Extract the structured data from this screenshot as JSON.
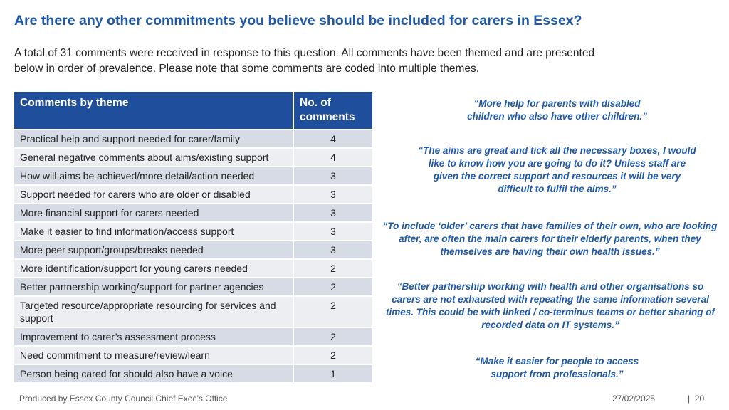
{
  "title": "Are there any other commitments you believe should be included for carers in Essex?",
  "intro": "A total of 31 comments were received in response to this question. All comments have been themed and are presented below in order of prevalence. Please note that some comments are coded into multiple themes.",
  "table": {
    "headers": {
      "theme": "Comments by theme",
      "count": "No. of comments"
    },
    "rows": [
      {
        "theme": "Practical help and support needed for carer/family",
        "count": "4"
      },
      {
        "theme": "General negative comments about aims/existing support",
        "count": "4"
      },
      {
        "theme": "How will aims be achieved/more detail/action needed",
        "count": "3"
      },
      {
        "theme": "Support needed for carers who are older or disabled",
        "count": "3"
      },
      {
        "theme": "More financial support for carers needed",
        "count": "3"
      },
      {
        "theme": "Make it easier to find information/access support",
        "count": "3"
      },
      {
        "theme": "More peer support/groups/breaks needed",
        "count": "3"
      },
      {
        "theme": "More identification/support for young carers needed",
        "count": "2"
      },
      {
        "theme": "Better partnership working/support for partner agencies",
        "count": "2"
      },
      {
        "theme": "Targeted resource/appropriate resourcing for services and support",
        "count": "2"
      },
      {
        "theme": "Improvement to carer’s assessment process",
        "count": "2"
      },
      {
        "theme": "Need commitment to measure/review/learn",
        "count": "2"
      },
      {
        "theme": "Person being cared for should also have a voice",
        "count": "1"
      }
    ]
  },
  "quotes": [
    "“More help for parents with disabled children who also have other children.”",
    "“The aims are great and tick all the necessary boxes, I would like to know how you are going to do it? Unless staff are given the correct support and resources it will be very difficult to fulfil the aims.”",
    "“To include ‘older’ carers that have families of their own, who are looking after, are often the main carers for their elderly parents, when they themselves are having their own health issues.”",
    "“Better partnership working with health and other organisations so carers are not exhausted with repeating the same information several times. This could be with linked / co-terminus teams or better sharing of recorded data on IT systems.”",
    "“Make it easier for people to access support from professionals.”"
  ],
  "footer": {
    "producer": "Produced by Essex County Council Chief Exec’s Office",
    "date": "27/02/2025",
    "page": "|  20"
  }
}
